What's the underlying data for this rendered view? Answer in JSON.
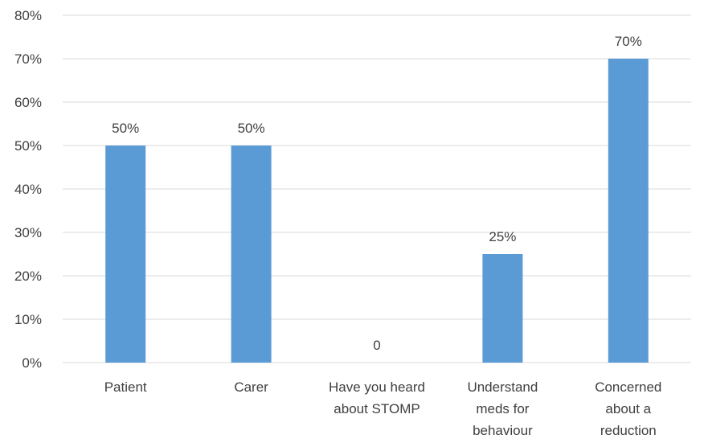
{
  "chart_data": {
    "type": "bar",
    "title": "",
    "xlabel": "",
    "ylabel": "",
    "ylim": [
      0,
      80
    ],
    "y_ticks": [
      "0%",
      "10%",
      "20%",
      "30%",
      "40%",
      "50%",
      "60%",
      "70%",
      "80%"
    ],
    "categories": [
      [
        "Patient"
      ],
      [
        "Carer"
      ],
      [
        "Have you heard",
        "about STOMP"
      ],
      [
        "Understand",
        "meds for",
        "behaviour"
      ],
      [
        "Concerned",
        "about a",
        "reduction"
      ]
    ],
    "values": [
      50,
      50,
      0,
      25,
      70
    ],
    "data_labels": [
      "50%",
      "50%",
      "0",
      "25%",
      "70%"
    ],
    "grid": true,
    "legend": "none",
    "bar_color": "#5b9bd5",
    "grid_color": "#d9d9d9",
    "text_color": "#404040"
  }
}
